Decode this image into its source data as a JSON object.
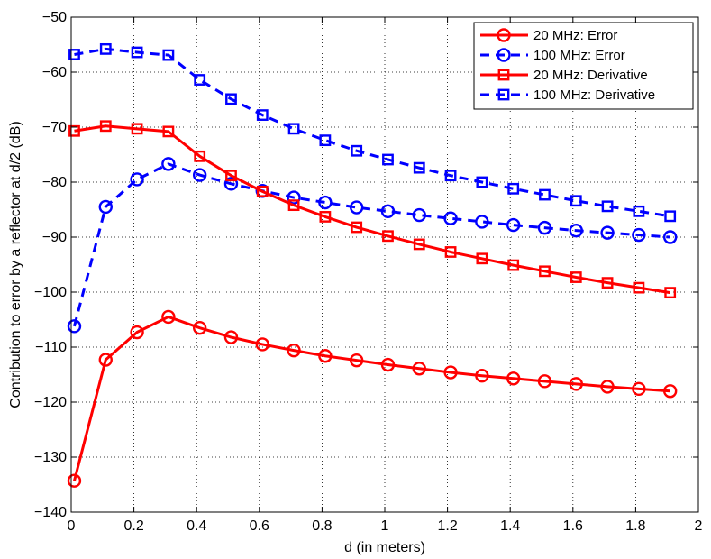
{
  "chart_data": {
    "type": "line",
    "title": "",
    "xlabel": "d (in meters)",
    "ylabel": "Contribution to error by a reflector at d/2 (dB)",
    "xlim": [
      0,
      2
    ],
    "ylim": [
      -140,
      -50
    ],
    "grid": true,
    "legend_position": "top-right",
    "x_ticks": [
      0,
      0.2,
      0.4,
      0.6,
      0.8,
      1,
      1.2,
      1.4,
      1.6,
      1.8,
      2
    ],
    "y_ticks": [
      -140,
      -130,
      -120,
      -110,
      -100,
      -90,
      -80,
      -70,
      -60,
      -50
    ],
    "x_tick_labels": [
      "0",
      "0.2",
      "0.4",
      "0.6",
      "0.8",
      "1",
      "1.2",
      "1.4",
      "1.6",
      "1.8",
      "2"
    ],
    "y_tick_labels": [
      "−140",
      "−130",
      "−120",
      "−110",
      "−100",
      "−90",
      "−80",
      "−70",
      "−60",
      "−50"
    ],
    "x": [
      0.01,
      0.11,
      0.21,
      0.31,
      0.41,
      0.51,
      0.61,
      0.71,
      0.81,
      0.91,
      1.01,
      1.11,
      1.21,
      1.31,
      1.41,
      1.51,
      1.61,
      1.71,
      1.81,
      1.91
    ],
    "series": [
      {
        "name": "20 MHz: Error",
        "color": "#ff0000",
        "dash": "solid",
        "marker": "circle",
        "values": [
          -134.3,
          -112.3,
          -107.3,
          -104.5,
          -106.5,
          -108.2,
          -109.5,
          -110.6,
          -111.6,
          -112.4,
          -113.2,
          -113.9,
          -114.6,
          -115.2,
          -115.7,
          -116.2,
          -116.7,
          -117.2,
          -117.6,
          -118.0
        ]
      },
      {
        "name": "100 MHz: Error",
        "color": "#0000ff",
        "dash": "dashed",
        "marker": "circle",
        "values": [
          -106.2,
          -84.5,
          -79.5,
          -76.7,
          -78.7,
          -80.3,
          -81.6,
          -82.8,
          -83.7,
          -84.6,
          -85.3,
          -86.0,
          -86.6,
          -87.2,
          -87.8,
          -88.3,
          -88.8,
          -89.2,
          -89.6,
          -90.0
        ]
      },
      {
        "name": "20 MHz: Derivative",
        "color": "#ff0000",
        "dash": "solid",
        "marker": "square",
        "values": [
          -70.7,
          -69.8,
          -70.3,
          -70.8,
          -75.3,
          -78.8,
          -81.7,
          -84.2,
          -86.3,
          -88.2,
          -89.8,
          -91.3,
          -92.7,
          -93.9,
          -95.1,
          -96.2,
          -97.3,
          -98.3,
          -99.2,
          -100.1
        ]
      },
      {
        "name": "100 MHz: Derivative",
        "color": "#0000ff",
        "dash": "dashed",
        "marker": "square",
        "values": [
          -56.8,
          -55.8,
          -56.4,
          -56.9,
          -61.4,
          -64.9,
          -67.8,
          -70.3,
          -72.4,
          -74.3,
          -75.9,
          -77.4,
          -78.8,
          -80.0,
          -81.2,
          -82.3,
          -83.4,
          -84.4,
          -85.3,
          -86.2
        ]
      }
    ]
  }
}
